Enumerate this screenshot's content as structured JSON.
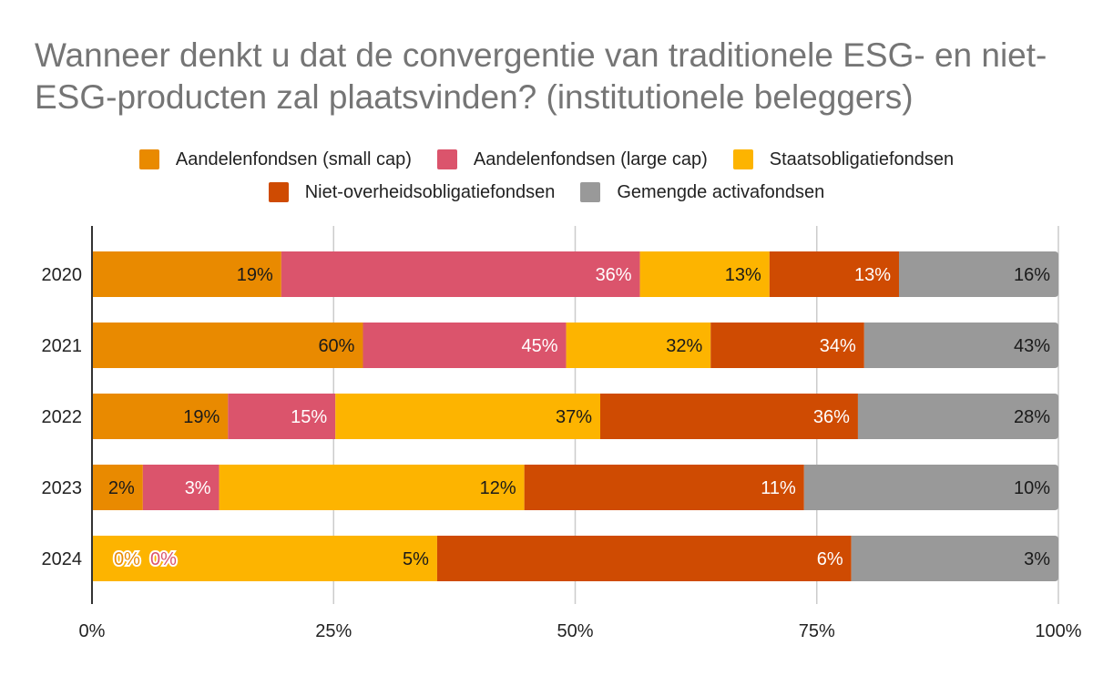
{
  "chart_data": {
    "type": "bar",
    "orientation": "horizontal",
    "stacking": "percent",
    "title": "Wanneer denkt u dat de convergentie van traditionele ESG- en niet-ESG-producten zal plaatsvinden? (institutionele beleggers)",
    "categories": [
      "2020",
      "2021",
      "2022",
      "2023",
      "2024"
    ],
    "series": [
      {
        "name": "Aandelenfondsen (small cap)",
        "color": "#e98a00",
        "label_color": "#1a1a1a",
        "values": [
          19,
          60,
          19,
          2,
          0
        ],
        "labels": [
          "19%",
          "60%",
          "19%",
          "2%",
          "0%"
        ]
      },
      {
        "name": "Aandelenfondsen (large cap)",
        "color": "#db546c",
        "label_color": "#ffffff",
        "values": [
          36,
          45,
          15,
          3,
          0
        ],
        "labels": [
          "36%",
          "45%",
          "15%",
          "3%",
          "0%"
        ]
      },
      {
        "name": "Staatsobligatiefondsen",
        "color": "#fdb400",
        "label_color": "#1a1a1a",
        "values": [
          13,
          32,
          37,
          12,
          5
        ],
        "labels": [
          "13%",
          "32%",
          "37%",
          "12%",
          "5%"
        ]
      },
      {
        "name": "Niet-overheidsobligatiefondsen",
        "color": "#cf4b02",
        "label_color": "#ffffff",
        "values": [
          13,
          34,
          36,
          11,
          6
        ],
        "labels": [
          "13%",
          "34%",
          "36%",
          "11%",
          "6%"
        ]
      },
      {
        "name": "Gemengde activafondsen",
        "color": "#999999",
        "label_color": "#1a1a1a",
        "values": [
          16,
          43,
          28,
          10,
          3
        ],
        "labels": [
          "16%",
          "43%",
          "28%",
          "10%",
          "3%"
        ]
      }
    ],
    "xlabel": "",
    "ylabel": "",
    "xlim": [
      0,
      100
    ],
    "x_ticks": [
      "0%",
      "25%",
      "50%",
      "75%",
      "100%"
    ],
    "grid": true,
    "legend_position": "top"
  }
}
